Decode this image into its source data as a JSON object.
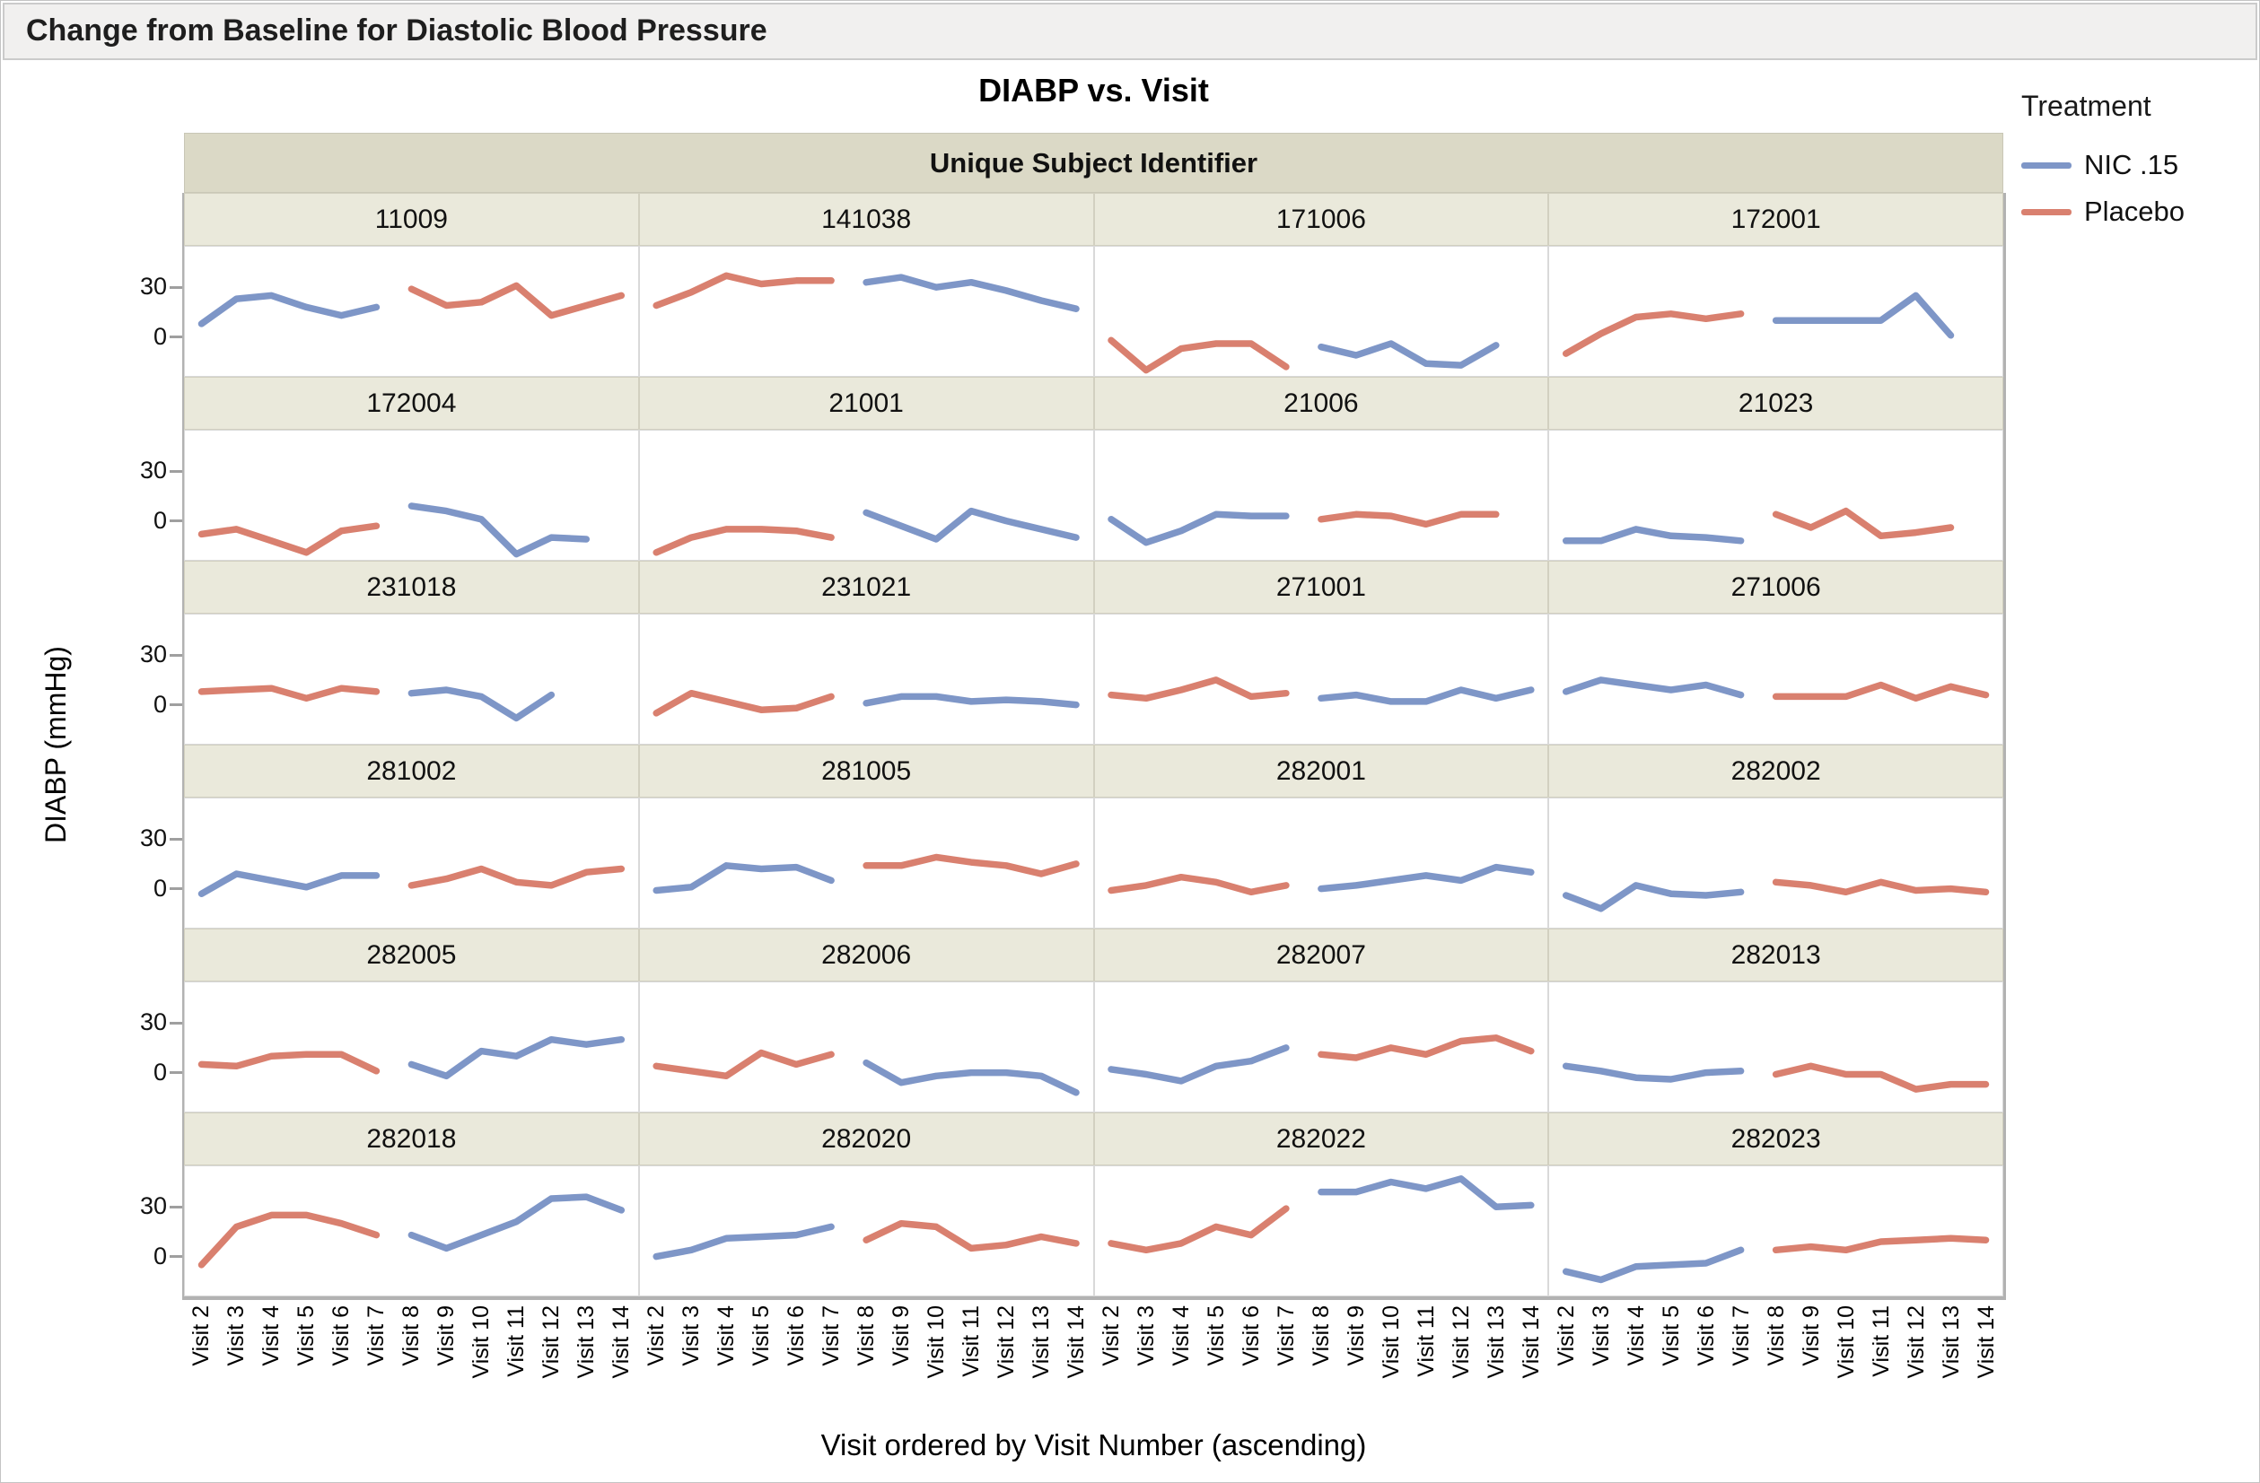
{
  "window": {
    "title": "Change from Baseline for Diastolic Blood Pressure"
  },
  "colors": {
    "nic": "#7E96C7",
    "placebo": "#D9806F",
    "band_bg": "#dbd9c6",
    "header_bg": "#eae9db",
    "titlebar_bg": "#f1f0ef",
    "axis_line": "#b2b2b2"
  },
  "chart_data": {
    "type": "line",
    "title": "DIABP vs. Visit",
    "panel_variable_label": "Unique Subject Identifier",
    "ylabel": "DIABP (mmHg)",
    "xlabel": "Visit ordered by Visit Number (ascending)",
    "x_categories": [
      "Visit 2",
      "Visit 3",
      "Visit 4",
      "Visit 5",
      "Visit 6",
      "Visit 7",
      "Visit 8",
      "Visit 9",
      "Visit 10",
      "Visit 11",
      "Visit 12",
      "Visit 13",
      "Visit 14"
    ],
    "y_ticks": [
      30,
      0
    ],
    "ylim": [
      -24,
      55
    ],
    "grid": {
      "rows": 6,
      "cols": 4,
      "gridlines": false
    },
    "legend": {
      "title": "Treatment",
      "position": "top-right",
      "entries": [
        {
          "label": "NIC .15",
          "color": "#7E96C7"
        },
        {
          "label": "Placebo",
          "color": "#D9806F"
        }
      ]
    },
    "panels": [
      {
        "subject": "11009",
        "segments": [
          {
            "treatment": "NIC .15",
            "start_visit": 2,
            "values": [
              8,
              23,
              25,
              18,
              13,
              18
            ]
          },
          {
            "treatment": "Placebo",
            "start_visit": 8,
            "values": [
              29,
              19,
              21,
              31,
              13,
              19,
              25
            ]
          }
        ]
      },
      {
        "subject": "141038",
        "segments": [
          {
            "treatment": "Placebo",
            "start_visit": 2,
            "values": [
              19,
              27,
              37,
              32,
              34,
              34
            ]
          },
          {
            "treatment": "NIC .15",
            "start_visit": 8,
            "values": [
              33,
              36,
              30,
              33,
              28,
              22,
              17
            ]
          }
        ]
      },
      {
        "subject": "171006",
        "segments": [
          {
            "treatment": "Placebo",
            "start_visit": 2,
            "values": [
              -2,
              -20,
              -7,
              -4,
              -4,
              -18
            ]
          },
          {
            "treatment": "NIC .15",
            "start_visit": 8,
            "values": [
              -6,
              -11,
              -4,
              -16,
              -17,
              -5
            ]
          }
        ]
      },
      {
        "subject": "172001",
        "segments": [
          {
            "treatment": "Placebo",
            "start_visit": 2,
            "values": [
              -10,
              2,
              12,
              14,
              11,
              14
            ]
          },
          {
            "treatment": "NIC .15",
            "start_visit": 8,
            "values": [
              10,
              10,
              10,
              10,
              25,
              1
            ]
          }
        ]
      },
      {
        "subject": "172004",
        "segments": [
          {
            "treatment": "Placebo",
            "start_visit": 2,
            "values": [
              -8,
              -5,
              -12,
              -19,
              -6,
              -3
            ]
          },
          {
            "treatment": "NIC .15",
            "start_visit": 8,
            "values": [
              9,
              6,
              1,
              -20,
              -10,
              -11
            ]
          }
        ]
      },
      {
        "subject": "21001",
        "segments": [
          {
            "treatment": "Placebo",
            "start_visit": 2,
            "values": [
              -19,
              -10,
              -5,
              -5,
              -6,
              -10
            ]
          },
          {
            "treatment": "NIC .15",
            "start_visit": 8,
            "values": [
              5,
              -3,
              -11,
              6,
              0,
              -5,
              -10
            ]
          }
        ]
      },
      {
        "subject": "21006",
        "segments": [
          {
            "treatment": "NIC .15",
            "start_visit": 2,
            "values": [
              1,
              -13,
              -6,
              4,
              3,
              3
            ]
          },
          {
            "treatment": "Placebo",
            "start_visit": 8,
            "values": [
              1,
              4,
              3,
              -2,
              4,
              4
            ]
          }
        ]
      },
      {
        "subject": "21023",
        "segments": [
          {
            "treatment": "NIC .15",
            "start_visit": 2,
            "values": [
              -12,
              -12,
              -5,
              -9,
              -10,
              -12
            ]
          },
          {
            "treatment": "Placebo",
            "start_visit": 8,
            "values": [
              4,
              -4,
              6,
              -9,
              -7,
              -4
            ]
          }
        ]
      },
      {
        "subject": "231018",
        "segments": [
          {
            "treatment": "Placebo",
            "start_visit": 2,
            "values": [
              8,
              9,
              10,
              4,
              10,
              8
            ]
          },
          {
            "treatment": "NIC .15",
            "start_visit": 8,
            "values": [
              7,
              9,
              5,
              -8,
              6
            ]
          }
        ]
      },
      {
        "subject": "231021",
        "segments": [
          {
            "treatment": "Placebo",
            "start_visit": 2,
            "values": [
              -5,
              7,
              2,
              -3,
              -2,
              5
            ]
          },
          {
            "treatment": "NIC .15",
            "start_visit": 8,
            "values": [
              1,
              5,
              5,
              2,
              3,
              2,
              0
            ]
          }
        ]
      },
      {
        "subject": "271001",
        "segments": [
          {
            "treatment": "Placebo",
            "start_visit": 2,
            "values": [
              6,
              4,
              9,
              15,
              5,
              7
            ]
          },
          {
            "treatment": "NIC .15",
            "start_visit": 8,
            "values": [
              4,
              6,
              2,
              2,
              9,
              4,
              9
            ]
          }
        ]
      },
      {
        "subject": "271006",
        "segments": [
          {
            "treatment": "NIC .15",
            "start_visit": 2,
            "values": [
              8,
              15,
              12,
              9,
              12,
              6
            ]
          },
          {
            "treatment": "Placebo",
            "start_visit": 8,
            "values": [
              5,
              5,
              5,
              12,
              4,
              11,
              6
            ]
          }
        ]
      },
      {
        "subject": "281002",
        "segments": [
          {
            "treatment": "NIC .15",
            "start_visit": 2,
            "values": [
              -3,
              9,
              5,
              1,
              8,
              8
            ]
          },
          {
            "treatment": "Placebo",
            "start_visit": 8,
            "values": [
              2,
              6,
              12,
              4,
              2,
              10,
              12
            ]
          }
        ]
      },
      {
        "subject": "281005",
        "segments": [
          {
            "treatment": "NIC .15",
            "start_visit": 2,
            "values": [
              -1,
              1,
              14,
              12,
              13,
              5
            ]
          },
          {
            "treatment": "Placebo",
            "start_visit": 8,
            "values": [
              14,
              14,
              19,
              16,
              14,
              9,
              15
            ]
          }
        ]
      },
      {
        "subject": "282001",
        "segments": [
          {
            "treatment": "Placebo",
            "start_visit": 2,
            "values": [
              -1,
              2,
              7,
              4,
              -2,
              2
            ]
          },
          {
            "treatment": "NIC .15",
            "start_visit": 8,
            "values": [
              0,
              2,
              5,
              8,
              5,
              13,
              10
            ]
          }
        ]
      },
      {
        "subject": "282002",
        "segments": [
          {
            "treatment": "NIC .15",
            "start_visit": 2,
            "values": [
              -4,
              -12,
              2,
              -3,
              -4,
              -2
            ]
          },
          {
            "treatment": "Placebo",
            "start_visit": 8,
            "values": [
              4,
              2,
              -2,
              4,
              -1,
              0,
              -2
            ]
          }
        ]
      },
      {
        "subject": "282005",
        "segments": [
          {
            "treatment": "Placebo",
            "start_visit": 2,
            "values": [
              5,
              4,
              10,
              11,
              11,
              1
            ]
          },
          {
            "treatment": "NIC .15",
            "start_visit": 8,
            "values": [
              5,
              -2,
              13,
              10,
              20,
              17,
              20
            ]
          }
        ]
      },
      {
        "subject": "282006",
        "segments": [
          {
            "treatment": "Placebo",
            "start_visit": 2,
            "values": [
              4,
              1,
              -2,
              12,
              5,
              11
            ]
          },
          {
            "treatment": "NIC .15",
            "start_visit": 8,
            "values": [
              6,
              -6,
              -2,
              0,
              0,
              -2,
              -12
            ]
          }
        ]
      },
      {
        "subject": "282007",
        "segments": [
          {
            "treatment": "NIC .15",
            "start_visit": 2,
            "values": [
              2,
              -1,
              -5,
              4,
              7,
              15
            ]
          },
          {
            "treatment": "Placebo",
            "start_visit": 8,
            "values": [
              11,
              9,
              15,
              11,
              19,
              21,
              13
            ]
          }
        ]
      },
      {
        "subject": "282013",
        "segments": [
          {
            "treatment": "NIC .15",
            "start_visit": 2,
            "values": [
              4,
              1,
              -3,
              -4,
              0,
              1
            ]
          },
          {
            "treatment": "Placebo",
            "start_visit": 8,
            "values": [
              -1,
              4,
              -1,
              -1,
              -10,
              -7,
              -7
            ]
          }
        ]
      },
      {
        "subject": "282018",
        "segments": [
          {
            "treatment": "Placebo",
            "start_visit": 2,
            "values": [
              -5,
              18,
              25,
              25,
              20,
              13
            ]
          },
          {
            "treatment": "NIC .15",
            "start_visit": 8,
            "values": [
              13,
              5,
              13,
              21,
              35,
              36,
              28
            ]
          }
        ]
      },
      {
        "subject": "282020",
        "segments": [
          {
            "treatment": "NIC .15",
            "start_visit": 2,
            "values": [
              0,
              4,
              11,
              12,
              13,
              18
            ]
          },
          {
            "treatment": "Placebo",
            "start_visit": 8,
            "values": [
              10,
              20,
              18,
              5,
              7,
              12,
              8
            ]
          }
        ]
      },
      {
        "subject": "282022",
        "segments": [
          {
            "treatment": "Placebo",
            "start_visit": 2,
            "values": [
              8,
              4,
              8,
              18,
              13,
              29
            ]
          },
          {
            "treatment": "NIC .15",
            "start_visit": 8,
            "values": [
              39,
              39,
              45,
              41,
              47,
              30,
              31
            ]
          }
        ]
      },
      {
        "subject": "282023",
        "segments": [
          {
            "treatment": "NIC .15",
            "start_visit": 2,
            "values": [
              -9,
              -14,
              -6,
              -5,
              -4,
              4
            ]
          },
          {
            "treatment": "Placebo",
            "start_visit": 8,
            "values": [
              4,
              6,
              4,
              9,
              10,
              11,
              10
            ]
          }
        ]
      }
    ]
  }
}
